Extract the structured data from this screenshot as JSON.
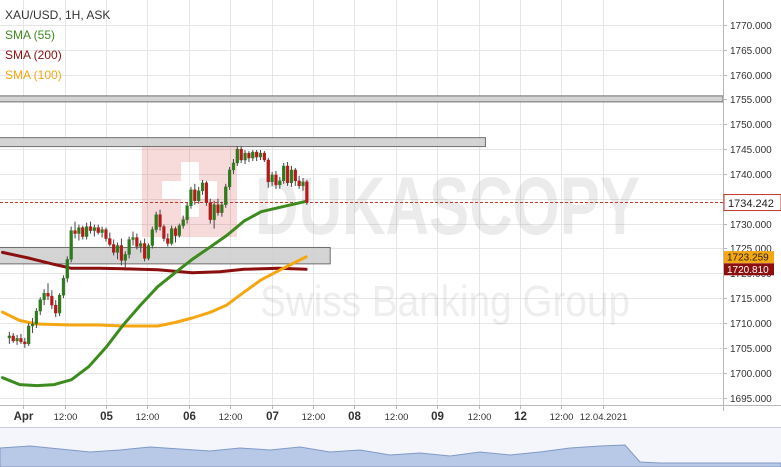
{
  "legend": {
    "title": "XAU/USD, 1H, ASK",
    "sma55": "SMA (55)",
    "sma200": "SMA (200)",
    "sma100": "SMA (100)"
  },
  "watermark": {
    "brand": "DUKASCOPY",
    "sub": "Swiss Banking Group"
  },
  "colors": {
    "background": "#ffffff",
    "grid": "#e6e6e6",
    "sma55": "#3d8a1e",
    "sma200": "#8b0f0f",
    "sma100": "#f5a712",
    "candle_up": "#2f7a1d",
    "candle_down": "#b31b1b",
    "zone_fill": "#cdcdcd",
    "zone_stroke": "#6e6e6e",
    "price_line": "#c0392b"
  },
  "chart_data": {
    "type": "candlestick",
    "title": "XAU/USD, 1H, ASK",
    "ylim": [
      1693.5,
      1775
    ],
    "y_ticks": [
      1695,
      1700,
      1705,
      1710,
      1715,
      1720,
      1725,
      1730,
      1735,
      1740,
      1745,
      1750,
      1755,
      1760,
      1765,
      1770
    ],
    "y_tick_labels": [
      "1695.000",
      "1700.000",
      "1705.000",
      "1710.000",
      "1715.000",
      "1720.000",
      "1725.000",
      "1730.000",
      "1735.000",
      "1740.000",
      "1745.000",
      "1750.000",
      "1755.000",
      "1760.000",
      "1765.000",
      "1770.000"
    ],
    "xlim": [
      -1,
      210
    ],
    "x_ticks": [
      {
        "x": 6,
        "label": "Apr",
        "bold": true
      },
      {
        "x": 18,
        "label": "12:00",
        "bold": false
      },
      {
        "x": 30,
        "label": "05",
        "bold": true
      },
      {
        "x": 42,
        "label": "12:00",
        "bold": false
      },
      {
        "x": 54,
        "label": "06",
        "bold": true
      },
      {
        "x": 66,
        "label": "12:00",
        "bold": false
      },
      {
        "x": 78,
        "label": "07",
        "bold": true
      },
      {
        "x": 90,
        "label": "12:00",
        "bold": false
      },
      {
        "x": 102,
        "label": "08",
        "bold": true
      },
      {
        "x": 114,
        "label": "12:00",
        "bold": false
      },
      {
        "x": 126,
        "label": "09",
        "bold": true
      },
      {
        "x": 138,
        "label": "12:00",
        "bold": false
      },
      {
        "x": 150,
        "label": "12",
        "bold": true
      },
      {
        "x": 162,
        "label": "12:00",
        "bold": false
      },
      {
        "x": 174,
        "label": "12.04.2021",
        "bold": false
      }
    ],
    "current_price": {
      "value": 1734.242,
      "label": "1734.242"
    },
    "price_tags": [
      {
        "value": 1723.259,
        "label": "1723.259",
        "series": "sma100"
      },
      {
        "value": 1720.81,
        "label": "1720.810",
        "series": "sma200"
      }
    ],
    "zones": [
      {
        "from": 1754.5,
        "to": 1755.7,
        "x_end": 210
      },
      {
        "from": 1745.5,
        "to": 1747.3,
        "x_end": 140
      },
      {
        "from": 1721.9,
        "to": 1725.2,
        "x_end": 95
      }
    ],
    "series": [
      {
        "name": "SMA (55)",
        "key": "sma55",
        "points": [
          [
            0,
            1699
          ],
          [
            5,
            1697.6
          ],
          [
            10,
            1697.4
          ],
          [
            15,
            1697.6
          ],
          [
            20,
            1698.6
          ],
          [
            25,
            1701.2
          ],
          [
            30,
            1705.1
          ],
          [
            35,
            1709.6
          ],
          [
            40,
            1713.6
          ],
          [
            45,
            1717.3
          ],
          [
            50,
            1720.1
          ],
          [
            55,
            1722.8
          ],
          [
            60,
            1725.2
          ],
          [
            65,
            1727.6
          ],
          [
            70,
            1730.5
          ],
          [
            75,
            1732.4
          ],
          [
            80,
            1733.2
          ],
          [
            88,
            1734.5
          ]
        ]
      },
      {
        "name": "SMA (200)",
        "key": "sma200",
        "points": [
          [
            0,
            1724.2
          ],
          [
            8,
            1723
          ],
          [
            15,
            1721.8
          ],
          [
            20,
            1721
          ],
          [
            28,
            1721
          ],
          [
            35,
            1720.9
          ],
          [
            45,
            1720.7
          ],
          [
            55,
            1720.1
          ],
          [
            63,
            1720.3
          ],
          [
            70,
            1720.8
          ],
          [
            80,
            1721
          ],
          [
            88,
            1720.8
          ]
        ]
      },
      {
        "name": "SMA (100)",
        "key": "sma100",
        "points": [
          [
            0,
            1712.2
          ],
          [
            5,
            1710.5
          ],
          [
            10,
            1709.8
          ],
          [
            15,
            1709.7
          ],
          [
            20,
            1709.6
          ],
          [
            28,
            1709.6
          ],
          [
            35,
            1709.4
          ],
          [
            45,
            1709.4
          ],
          [
            50,
            1710.1
          ],
          [
            55,
            1711
          ],
          [
            60,
            1712.1
          ],
          [
            65,
            1713.6
          ],
          [
            70,
            1716.2
          ],
          [
            75,
            1718.7
          ],
          [
            80,
            1720.5
          ],
          [
            88,
            1723.3
          ]
        ]
      }
    ],
    "candles": [
      [
        1707.0,
        1708.2,
        1705.8,
        1707.4
      ],
      [
        1707.4,
        1708.0,
        1706.0,
        1706.4
      ],
      [
        1706.4,
        1707.6,
        1705.6,
        1706.9
      ],
      [
        1706.9,
        1707.8,
        1705.8,
        1706.2
      ],
      [
        1706.2,
        1707.0,
        1705.0,
        1705.8
      ],
      [
        1705.8,
        1710.0,
        1705.4,
        1709.4
      ],
      [
        1709.4,
        1711.0,
        1708.0,
        1709.8
      ],
      [
        1709.8,
        1713.0,
        1709.0,
        1712.4
      ],
      [
        1712.4,
        1715.2,
        1711.6,
        1714.7
      ],
      [
        1714.7,
        1716.8,
        1713.6,
        1716.0
      ],
      [
        1716.0,
        1718.0,
        1714.6,
        1715.4
      ],
      [
        1715.4,
        1716.6,
        1712.8,
        1713.6
      ],
      [
        1713.6,
        1714.6,
        1711.2,
        1712.0
      ],
      [
        1712.0,
        1716.0,
        1711.4,
        1715.6
      ],
      [
        1715.6,
        1719.6,
        1715.0,
        1719.0
      ],
      [
        1719.0,
        1723.4,
        1718.2,
        1722.8
      ],
      [
        1722.8,
        1729.4,
        1722.2,
        1728.6
      ],
      [
        1728.6,
        1730.4,
        1727.0,
        1728.0
      ],
      [
        1728.0,
        1729.8,
        1726.6,
        1729.2
      ],
      [
        1729.2,
        1729.6,
        1726.8,
        1727.4
      ],
      [
        1727.4,
        1730.2,
        1726.8,
        1729.4
      ],
      [
        1729.4,
        1730.4,
        1728.0,
        1728.6
      ],
      [
        1728.6,
        1729.8,
        1727.4,
        1729.2
      ],
      [
        1729.2,
        1729.8,
        1727.8,
        1728.2
      ],
      [
        1728.2,
        1729.4,
        1727.2,
        1728.8
      ],
      [
        1728.8,
        1729.2,
        1726.4,
        1727.0
      ],
      [
        1727.0,
        1728.2,
        1725.4,
        1725.8
      ],
      [
        1725.8,
        1726.8,
        1723.6,
        1724.2
      ],
      [
        1724.2,
        1726.2,
        1722.8,
        1725.6
      ],
      [
        1725.6,
        1727.0,
        1721.6,
        1722.6
      ],
      [
        1722.6,
        1724.4,
        1721.2,
        1723.8
      ],
      [
        1723.8,
        1727.4,
        1723.0,
        1726.8
      ],
      [
        1726.8,
        1728.4,
        1725.6,
        1727.2
      ],
      [
        1727.2,
        1728.0,
        1724.8,
        1725.4
      ],
      [
        1725.4,
        1726.6,
        1724.2,
        1726.0
      ],
      [
        1726.0,
        1727.0,
        1722.4,
        1723.0
      ],
      [
        1723.0,
        1726.0,
        1722.6,
        1725.6
      ],
      [
        1725.6,
        1729.4,
        1725.0,
        1728.8
      ],
      [
        1728.8,
        1732.4,
        1728.2,
        1731.8
      ],
      [
        1731.8,
        1732.8,
        1728.6,
        1729.4
      ],
      [
        1729.4,
        1729.8,
        1726.4,
        1727.0
      ],
      [
        1727.0,
        1728.0,
        1725.4,
        1726.0
      ],
      [
        1726.0,
        1729.6,
        1725.6,
        1729.0
      ],
      [
        1729.0,
        1729.4,
        1726.2,
        1727.6
      ],
      [
        1727.6,
        1730.0,
        1727.2,
        1729.6
      ],
      [
        1729.6,
        1731.6,
        1729.0,
        1730.8
      ],
      [
        1730.8,
        1734.2,
        1730.0,
        1733.6
      ],
      [
        1733.6,
        1737.4,
        1733.0,
        1736.8
      ],
      [
        1736.8,
        1738.0,
        1733.8,
        1734.6
      ],
      [
        1734.6,
        1737.4,
        1734.0,
        1736.6
      ],
      [
        1736.6,
        1738.8,
        1735.8,
        1738.2
      ],
      [
        1738.2,
        1738.6,
        1733.6,
        1734.2
      ],
      [
        1734.2,
        1735.0,
        1730.0,
        1730.8
      ],
      [
        1730.8,
        1734.6,
        1729.0,
        1733.8
      ],
      [
        1733.8,
        1735.0,
        1731.6,
        1732.2
      ],
      [
        1732.2,
        1734.4,
        1731.4,
        1733.8
      ],
      [
        1733.8,
        1738.0,
        1733.2,
        1737.4
      ],
      [
        1737.4,
        1741.4,
        1736.8,
        1740.8
      ],
      [
        1740.8,
        1743.0,
        1740.0,
        1742.2
      ],
      [
        1742.2,
        1745.6,
        1741.6,
        1745.0
      ],
      [
        1745.0,
        1745.6,
        1742.2,
        1742.8
      ],
      [
        1742.8,
        1744.8,
        1742.0,
        1744.2
      ],
      [
        1744.2,
        1744.6,
        1742.4,
        1743.2
      ],
      [
        1743.2,
        1744.8,
        1742.6,
        1744.4
      ],
      [
        1744.4,
        1744.8,
        1742.6,
        1743.4
      ],
      [
        1743.4,
        1744.8,
        1742.8,
        1744.2
      ],
      [
        1744.2,
        1744.6,
        1742.4,
        1742.8
      ],
      [
        1742.8,
        1743.2,
        1737.2,
        1738.4
      ],
      [
        1738.4,
        1740.4,
        1737.6,
        1739.8
      ],
      [
        1739.8,
        1740.6,
        1737.0,
        1737.8
      ],
      [
        1737.8,
        1739.4,
        1737.0,
        1738.6
      ],
      [
        1738.6,
        1742.2,
        1738.0,
        1741.6
      ],
      [
        1741.6,
        1742.4,
        1737.6,
        1738.2
      ],
      [
        1738.2,
        1741.6,
        1737.4,
        1740.8
      ],
      [
        1740.8,
        1741.2,
        1737.6,
        1738.6
      ],
      [
        1738.6,
        1739.6,
        1737.0,
        1737.6
      ],
      [
        1737.6,
        1739.2,
        1736.6,
        1738.4
      ],
      [
        1738.4,
        1738.8,
        1733.8,
        1734.24
      ]
    ],
    "candles_x_start": 2,
    "candles_x_step": 1.12
  }
}
